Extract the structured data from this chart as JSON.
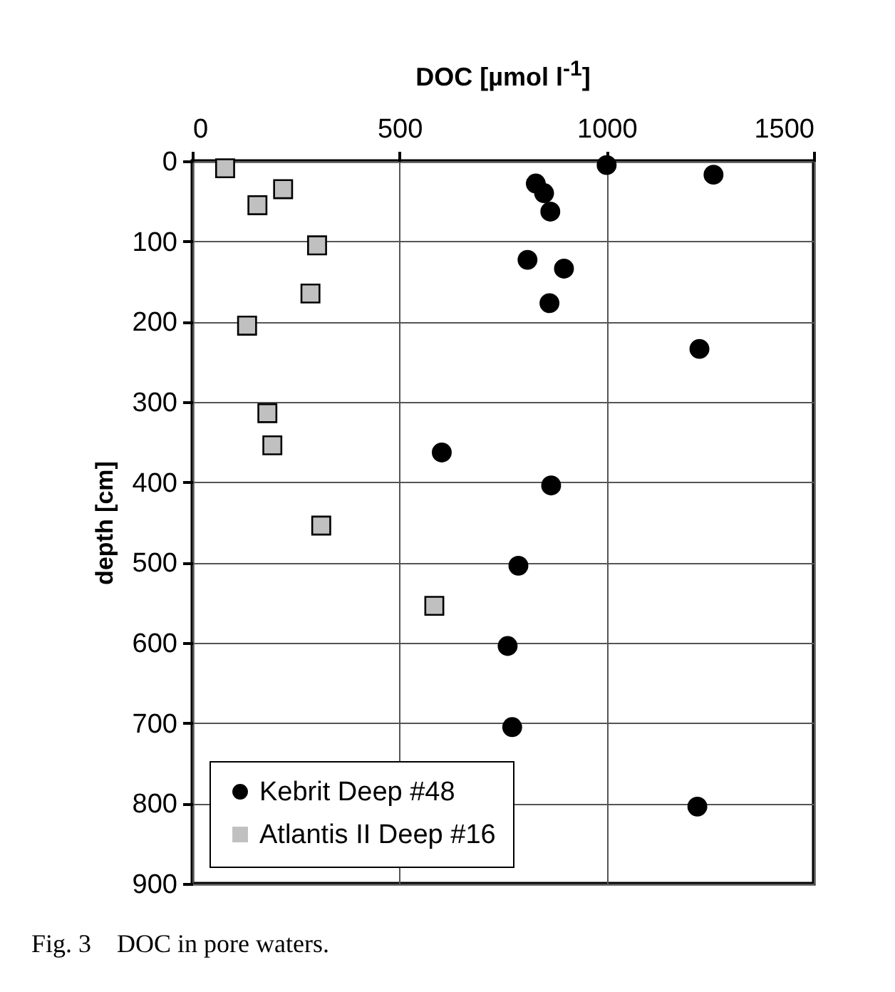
{
  "chart_data": {
    "type": "scatter",
    "xlabel": "DOC [µmol l$^{-1}$]",
    "ylabel": "depth [cm]",
    "xlim": [
      0,
      1500
    ],
    "xticks": [
      0,
      500,
      1000,
      1500
    ],
    "ylim": [
      900,
      0
    ],
    "yticks": [
      0,
      100,
      200,
      300,
      400,
      500,
      600,
      700,
      800,
      900
    ],
    "grid": true,
    "legend": "bottom left",
    "series": [
      {
        "name": "Kebrit Deep #48",
        "color": "#000000",
        "marker": "circle",
        "x": [
          1000,
          1258,
          829,
          849,
          864,
          809,
          897,
          862,
          1224,
          602,
          866,
          787,
          761,
          772,
          1219
        ],
        "values": [
          5,
          17,
          28,
          40,
          63,
          123,
          134,
          177,
          234,
          363,
          404,
          504,
          604,
          705,
          804
        ]
      },
      {
        "name": "Atlantis II Deep #16",
        "color": "#c0c0c0",
        "marker": "square",
        "x": [
          79,
          219,
          157,
          301,
          285,
          132,
          181,
          193,
          311,
          584
        ],
        "values": [
          9,
          35,
          55,
          105,
          165,
          205,
          314,
          354,
          454,
          554
        ]
      }
    ],
    "annotations": [
      "Fig. 3    DOC in pore waters."
    ]
  }
}
